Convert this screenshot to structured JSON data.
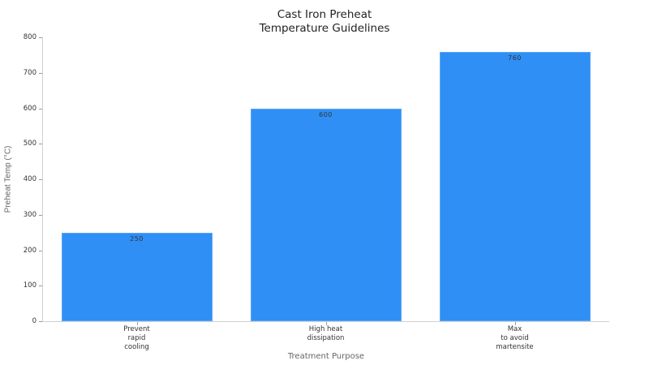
{
  "chart_data": {
    "type": "bar",
    "title": "Cast Iron Preheat Temperature Guidelines",
    "title_lines": [
      "Cast Iron Preheat",
      "Temperature Guidelines"
    ],
    "xlabel": "Treatment Purpose",
    "ylabel": "Preheat Temp (°C)",
    "categories": [
      "Prevent rapid cooling",
      "High heat dissipation",
      "Max to avoid martensite"
    ],
    "category_lines": [
      [
        "Prevent",
        "rapid",
        "cooling"
      ],
      [
        "High heat",
        "dissipation"
      ],
      [
        "Max",
        "to avoid",
        "martensite"
      ]
    ],
    "values": [
      250,
      600,
      760
    ],
    "data_labels": [
      "250",
      "600",
      "760"
    ],
    "ylim": [
      0,
      800
    ],
    "yticks": [
      "0",
      "100",
      "200",
      "300",
      "400",
      "500",
      "600",
      "700",
      "800"
    ],
    "bar_color": "#2f8ff5",
    "grid": false,
    "legend": null
  }
}
